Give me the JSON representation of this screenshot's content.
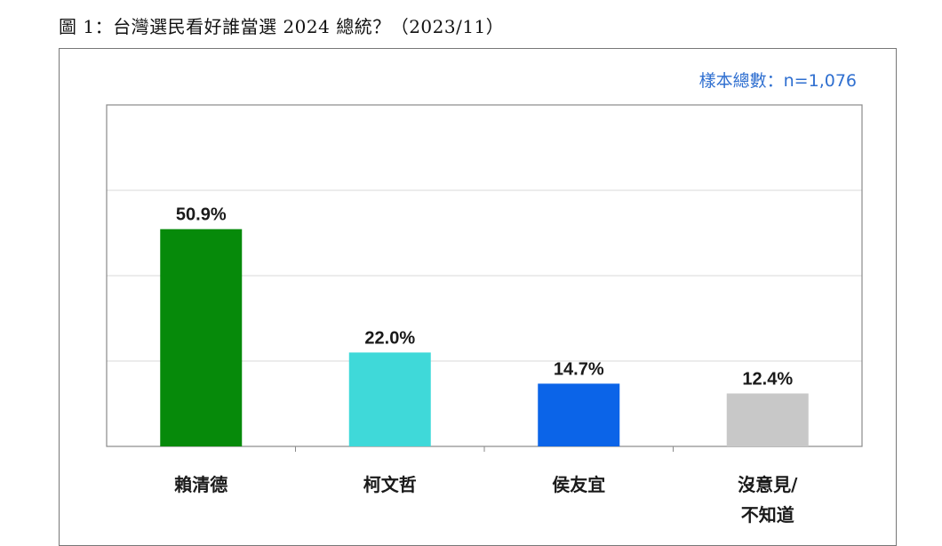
{
  "figure": {
    "title": "圖 1：台灣選民看好誰當選 2024 總統？（2023/11）",
    "sample_note": "樣本總數：n=1,076"
  },
  "chart_data": {
    "type": "bar",
    "title": "圖 1：台灣選民看好誰當選 2024 總統？（2023/11）",
    "categories": [
      [
        "賴清德"
      ],
      [
        "柯文哲"
      ],
      [
        "侯友宜"
      ],
      [
        "沒意見/",
        "不知道"
      ]
    ],
    "values": [
      50.9,
      22.0,
      14.7,
      12.4
    ],
    "value_labels": [
      "50.9%",
      "22.0%",
      "14.7%",
      "12.4%"
    ],
    "colors": [
      "#068a0a",
      "#3fd9d9",
      "#0b64e8",
      "#c8c8c8"
    ],
    "ylim": [
      0,
      80
    ],
    "grid": true,
    "xlabel": "",
    "ylabel": ""
  }
}
